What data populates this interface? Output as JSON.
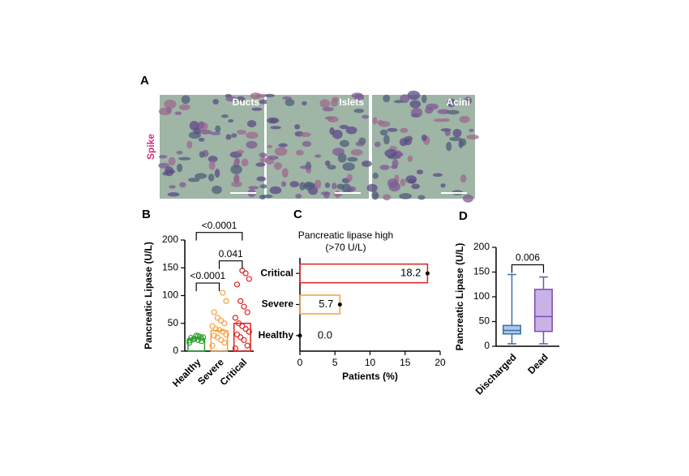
{
  "figure": {
    "label": "A",
    "image_labels": [
      "Ducts",
      "Islets",
      "Acini"
    ],
    "stain": "Spike"
  },
  "chart_data": [
    {
      "type": "bar",
      "panel": "B",
      "ylabel": "Pancreatic Lipase (U/L)",
      "categories": [
        "Healthy",
        "Severe",
        "Critical"
      ],
      "values": [
        22,
        37,
        50
      ],
      "colors": [
        "#2ca02c",
        "#f5a142",
        "#e02020"
      ],
      "points": [
        [
          15,
          18,
          20,
          22,
          24,
          25,
          26,
          28,
          21,
          19,
          23,
          27
        ],
        [
          10,
          15,
          20,
          25,
          28,
          30,
          35,
          38,
          40,
          45,
          50,
          55,
          60,
          70,
          90,
          105
        ],
        [
          5,
          10,
          20,
          25,
          30,
          35,
          40,
          45,
          50,
          60,
          70,
          80,
          90,
          120,
          130,
          140,
          145
        ]
      ],
      "ylim": [
        0,
        200
      ],
      "yticks": [
        0,
        50,
        100,
        150,
        200
      ],
      "comparisons": [
        {
          "groups": [
            0,
            2
          ],
          "label": "<0.0001"
        },
        {
          "groups": [
            0,
            1
          ],
          "label": "<0.0001"
        },
        {
          "groups": [
            1,
            2
          ],
          "label": "0.041"
        }
      ]
    },
    {
      "type": "barh",
      "panel": "C",
      "title": "Pancreatic lipase high",
      "subtitle": "(>70 U/L)",
      "xlabel": "Patients (%)",
      "categories": [
        "Critical",
        "Severe",
        "Healthy"
      ],
      "values": [
        18.2,
        5.7,
        0
      ],
      "value_labels": [
        "18.2",
        "5.7",
        "0.0"
      ],
      "colors": [
        "#e02020",
        "#f0a040",
        "#000000"
      ],
      "xlim": [
        0,
        20
      ],
      "xticks": [
        0,
        5,
        10,
        15,
        20
      ]
    },
    {
      "type": "box",
      "panel": "D",
      "ylabel": "Pancreatic Lipase (U/L)",
      "categories": [
        "Discharged",
        "Dead"
      ],
      "boxes": [
        {
          "min": 5,
          "q1": 25,
          "median": 32,
          "q3": 42,
          "max": 145
        },
        {
          "min": 5,
          "q1": 30,
          "median": 60,
          "q3": 115,
          "max": 140
        }
      ],
      "colors": [
        "#a9c8ec",
        "#c9b3e6"
      ],
      "edge_colors": [
        "#3a6ea5",
        "#7b4fb0"
      ],
      "ylim": [
        0,
        200
      ],
      "yticks": [
        0,
        50,
        100,
        150,
        200
      ],
      "comparisons": [
        {
          "groups": [
            0,
            1
          ],
          "label": "0.006"
        }
      ]
    }
  ]
}
